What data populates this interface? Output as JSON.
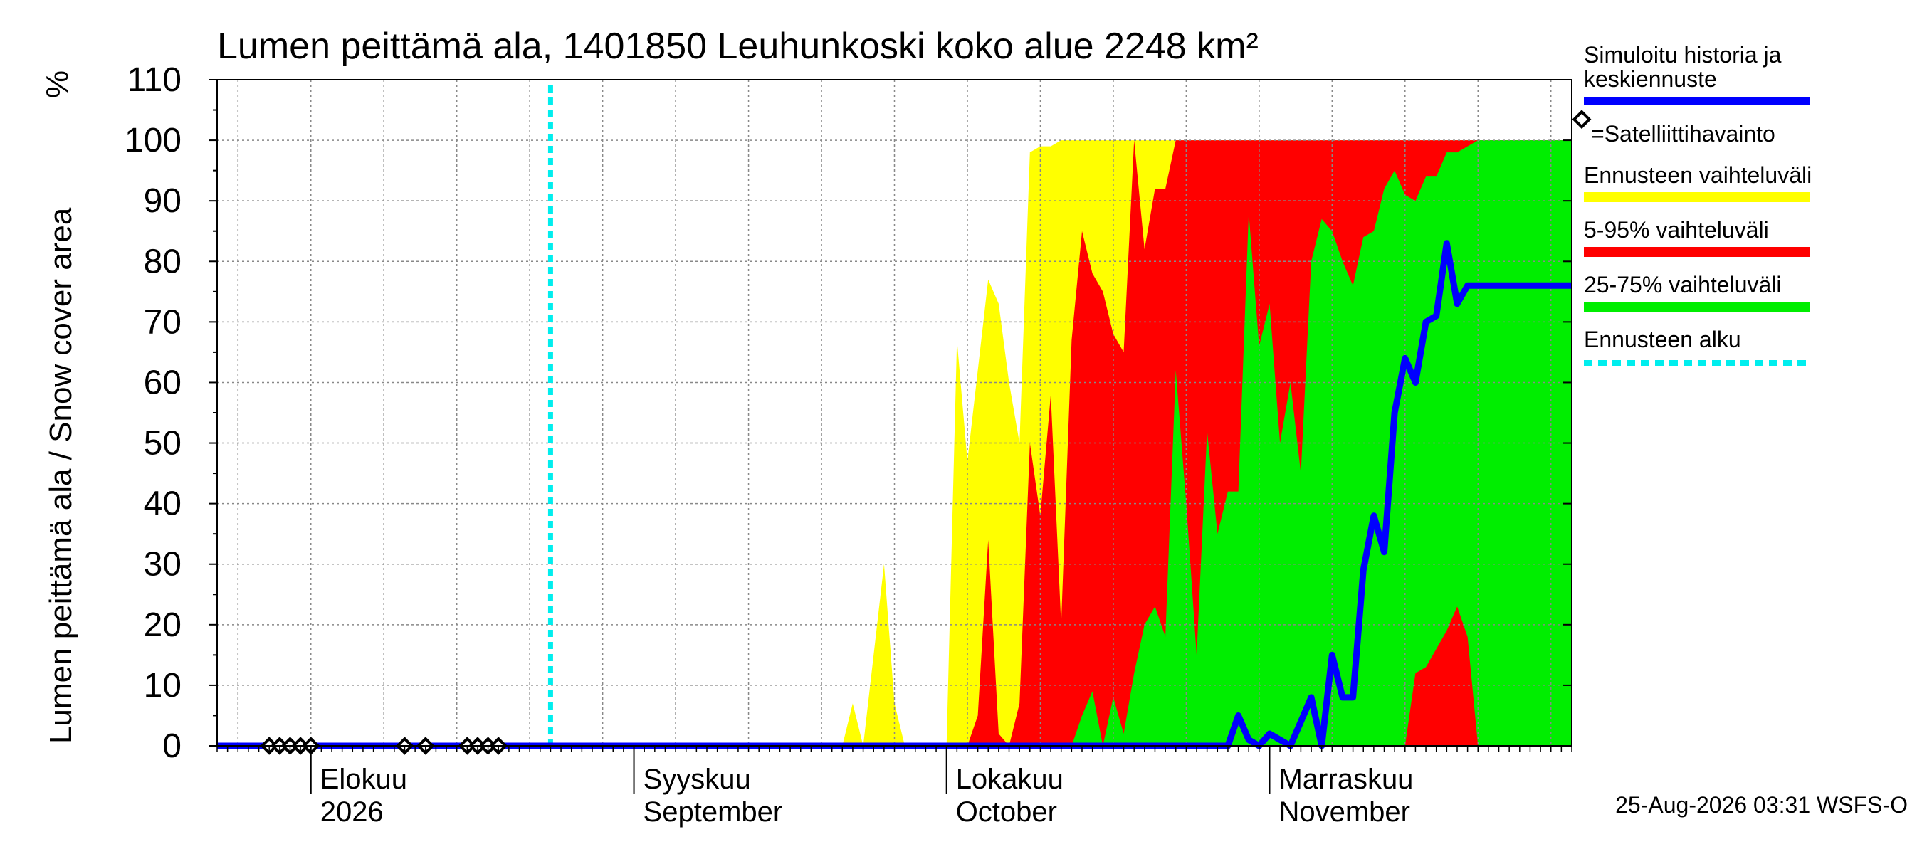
{
  "title": "Lumen peittämä ala, 1401850 Leuhunkoski koko alue 2248 km²",
  "ylabel": "Lumen peittämä ala / Snow cover area",
  "yunit": "%",
  "timestamp": "25-Aug-2026 03:31 WSFS-O",
  "x_tick_labels": [
    {
      "date": "2026-08-01",
      "line1": "Elokuu",
      "line2": "2026"
    },
    {
      "date": "2026-09-01",
      "line1": "Syyskuu",
      "line2": "September"
    },
    {
      "date": "2026-10-01",
      "line1": "Lokakuu",
      "line2": "October"
    },
    {
      "date": "2026-11-01",
      "line1": "Marraskuu",
      "line2": "November"
    }
  ],
  "legend": {
    "median": "Simuloitu historia ja keskiennuste",
    "median_line1": "Simuloitu historia ja",
    "median_line2": "keskiennuste",
    "satellite": "=Satelliittihavainto",
    "range": "Ennusteen vaihteluväli",
    "p5_95": "5-95% vaihteluväli",
    "p25_75": "25-75% vaihteluväli",
    "forecast_start": "Ennusteen alku"
  },
  "colors": {
    "range": "#ffff00",
    "p5_95": "#ff0000",
    "p25_75": "#00ee00",
    "median": "#0000ff",
    "forecast_start": "#00eeee",
    "grid": "#888888"
  },
  "chart_data": {
    "type": "area",
    "title": "Lumen peittämä ala, 1401850 Leuhunkoski koko alue 2248 km²",
    "ylabel": "Lumen peittämä ala / Snow cover area",
    "ylim": [
      0,
      110
    ],
    "yticks": [
      0,
      10,
      20,
      30,
      40,
      50,
      60,
      70,
      80,
      90,
      100,
      110
    ],
    "xlim": [
      "2026-07-23",
      "2026-11-30"
    ],
    "grid": true,
    "legend_position": "right",
    "forecast_start": "2026-08-24",
    "satellite_observations": [
      {
        "date": "2026-07-28",
        "value": 0
      },
      {
        "date": "2026-07-29",
        "value": 0
      },
      {
        "date": "2026-07-30",
        "value": 0
      },
      {
        "date": "2026-07-31",
        "value": 0
      },
      {
        "date": "2026-08-01",
        "value": 0
      },
      {
        "date": "2026-08-10",
        "value": 0
      },
      {
        "date": "2026-08-12",
        "value": 0
      },
      {
        "date": "2026-08-16",
        "value": 0
      },
      {
        "date": "2026-08-17",
        "value": 0
      },
      {
        "date": "2026-08-18",
        "value": 0
      },
      {
        "date": "2026-08-19",
        "value": 0
      }
    ],
    "series": [
      {
        "name": "Ennusteen vaihteluväli",
        "x": [
          "2026-08-24",
          "2026-09-21",
          "2026-09-22",
          "2026-09-23",
          "2026-09-25",
          "2026-09-26",
          "2026-09-27",
          "2026-09-28",
          "2026-09-29",
          "2026-09-30",
          "2026-10-01",
          "2026-10-02",
          "2026-10-03",
          "2026-10-04",
          "2026-10-05",
          "2026-10-06",
          "2026-10-07",
          "2026-10-08",
          "2026-10-09",
          "2026-10-10",
          "2026-10-11",
          "2026-10-12",
          "2026-10-13",
          "2026-10-20",
          "2026-11-30"
        ],
        "values": [
          0,
          0,
          7,
          0,
          30,
          7,
          0,
          0,
          0,
          0,
          0,
          67,
          47,
          62,
          77,
          73,
          60,
          50,
          98,
          99,
          99,
          100,
          100,
          100,
          100
        ]
      },
      {
        "name": "5-95% vaihteluväli",
        "x": [
          "2026-08-24",
          "2026-10-03",
          "2026-10-04",
          "2026-10-05",
          "2026-10-06",
          "2026-10-07",
          "2026-10-08",
          "2026-10-09",
          "2026-10-10",
          "2026-10-11",
          "2026-10-12",
          "2026-10-13",
          "2026-10-14",
          "2026-10-15",
          "2026-10-16",
          "2026-10-17",
          "2026-10-18",
          "2026-10-19",
          "2026-10-20",
          "2026-10-21",
          "2026-10-22",
          "2026-10-23",
          "2026-10-24",
          "2026-10-25",
          "2026-11-30"
        ],
        "values": [
          0,
          0,
          5,
          34,
          2,
          0,
          7,
          50,
          38,
          58,
          20,
          67,
          85,
          78,
          75,
          68,
          65,
          100,
          82,
          92,
          92,
          100,
          100,
          100,
          100
        ]
      },
      {
        "name": "25-75% vaihteluväli",
        "x": [
          "2026-08-24",
          "2026-10-12",
          "2026-10-13",
          "2026-10-14",
          "2026-10-15",
          "2026-10-16",
          "2026-10-17",
          "2026-10-18",
          "2026-10-19",
          "2026-10-20",
          "2026-10-21",
          "2026-10-22",
          "2026-10-23",
          "2026-10-24",
          "2026-10-25",
          "2026-10-26",
          "2026-10-27",
          "2026-10-28",
          "2026-10-29",
          "2026-10-30",
          "2026-10-31",
          "2026-11-01",
          "2026-11-02",
          "2026-11-03",
          "2026-11-04",
          "2026-11-05",
          "2026-11-06",
          "2026-11-07",
          "2026-11-08",
          "2026-11-09",
          "2026-11-10",
          "2026-11-11",
          "2026-11-12",
          "2026-11-13",
          "2026-11-14",
          "2026-11-15",
          "2026-11-16",
          "2026-11-17",
          "2026-11-18",
          "2026-11-19",
          "2026-11-20",
          "2026-11-21",
          "2026-11-22",
          "2026-11-23",
          "2026-11-24",
          "2026-11-25",
          "2026-11-26",
          "2026-11-27",
          "2026-11-28",
          "2026-11-29",
          "2026-11-30"
        ],
        "values": [
          0,
          0,
          0,
          5,
          9,
          0,
          8,
          2,
          12,
          20,
          23,
          18,
          62,
          40,
          15,
          52,
          35,
          42,
          42,
          88,
          66,
          73,
          50,
          60,
          45,
          80,
          87,
          85,
          80,
          76,
          84,
          85,
          92,
          95,
          91,
          90,
          94,
          94,
          98,
          98,
          99,
          100,
          100,
          100,
          100,
          100,
          100,
          100,
          100,
          100,
          100
        ]
      },
      {
        "name": "5-95% lower",
        "x": [
          "2026-08-24",
          "2026-11-14",
          "2026-11-15",
          "2026-11-16",
          "2026-11-17",
          "2026-11-18",
          "2026-11-19",
          "2026-11-20",
          "2026-11-21",
          "2026-11-22",
          "2026-11-23",
          "2026-11-24",
          "2026-11-25",
          "2026-11-26",
          "2026-11-27",
          "2026-11-28",
          "2026-11-29",
          "2026-11-30"
        ],
        "values": [
          0,
          0,
          12,
          13,
          16,
          19,
          23,
          18,
          0,
          0,
          0,
          0,
          0,
          0,
          0,
          0,
          0,
          0
        ]
      },
      {
        "name": "Simuloitu historia ja keskiennuste",
        "x": [
          "2026-07-23",
          "2026-10-27",
          "2026-10-28",
          "2026-10-29",
          "2026-10-30",
          "2026-10-31",
          "2026-11-01",
          "2026-11-02",
          "2026-11-03",
          "2026-11-04",
          "2026-11-05",
          "2026-11-06",
          "2026-11-07",
          "2026-11-08",
          "2026-11-09",
          "2026-11-10",
          "2026-11-11",
          "2026-11-12",
          "2026-11-13",
          "2026-11-14",
          "2026-11-15",
          "2026-11-16",
          "2026-11-17",
          "2026-11-18",
          "2026-11-19",
          "2026-11-20",
          "2026-11-21",
          "2026-11-22",
          "2026-11-23",
          "2026-11-24",
          "2026-11-25",
          "2026-11-26",
          "2026-11-27",
          "2026-11-28",
          "2026-11-29",
          "2026-11-30"
        ],
        "values": [
          0,
          0,
          0,
          5,
          1,
          0,
          2,
          1,
          0,
          4,
          8,
          0,
          15,
          8,
          8,
          29,
          38,
          32,
          55,
          64,
          60,
          70,
          71,
          83,
          73,
          76,
          76,
          76,
          76,
          76,
          76,
          76,
          76,
          76,
          76,
          76
        ]
      }
    ]
  }
}
